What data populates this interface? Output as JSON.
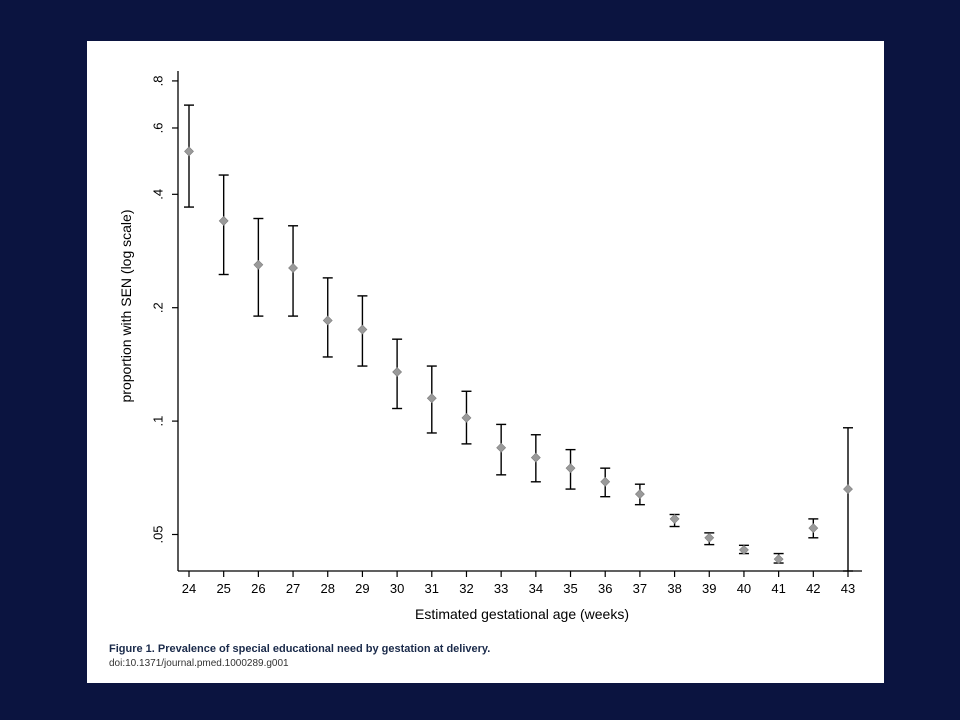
{
  "caption": {
    "title": "Figure 1. Prevalence of special educational need by gestation at delivery.",
    "doi": "doi:10.1371/journal.pmed.1000289.g001"
  },
  "colors": {
    "background": "#0b1440",
    "panel": "#ffffff",
    "marker": "#9a9a9a",
    "errorbar": "#000000"
  },
  "chart_data": {
    "type": "scatter",
    "title": "",
    "xlabel": "Estimated gestational age (weeks)",
    "ylabel": "proportion with SEN (log scale)",
    "yscale": "log",
    "ylim": [
      0.04,
      0.85
    ],
    "y_ticks": [
      0.05,
      0.1,
      0.2,
      0.4,
      0.6,
      0.8
    ],
    "y_tick_labels": [
      ".05",
      ".1",
      ".2",
      ".4",
      ".6",
      ".8"
    ],
    "x": [
      24,
      25,
      26,
      27,
      28,
      29,
      30,
      31,
      32,
      33,
      34,
      35,
      36,
      37,
      38,
      39,
      40,
      41,
      42,
      43
    ],
    "x_tick_labels": [
      "24",
      "25",
      "26",
      "27",
      "28",
      "29",
      "30",
      "31",
      "32",
      "33",
      "34",
      "35",
      "36",
      "37",
      "38",
      "39",
      "40",
      "41",
      "42",
      "43"
    ],
    "series": [
      {
        "y": [
          0.52,
          0.34,
          0.26,
          0.255,
          0.185,
          0.175,
          0.135,
          0.115,
          0.102,
          0.085,
          0.08,
          0.075,
          0.069,
          0.064,
          0.055,
          0.049,
          0.0455,
          0.043,
          0.052,
          0.066
        ],
        "lower": [
          0.37,
          0.245,
          0.19,
          0.19,
          0.148,
          0.14,
          0.108,
          0.093,
          0.087,
          0.072,
          0.069,
          0.066,
          0.063,
          0.06,
          0.0525,
          0.047,
          0.0445,
          0.042,
          0.049,
          0.04
        ],
        "upper": [
          0.69,
          0.45,
          0.345,
          0.33,
          0.24,
          0.215,
          0.165,
          0.14,
          0.12,
          0.098,
          0.092,
          0.084,
          0.075,
          0.068,
          0.0565,
          0.0505,
          0.0468,
          0.0445,
          0.055,
          0.096
        ]
      }
    ],
    "grid": false,
    "legend": "none"
  }
}
